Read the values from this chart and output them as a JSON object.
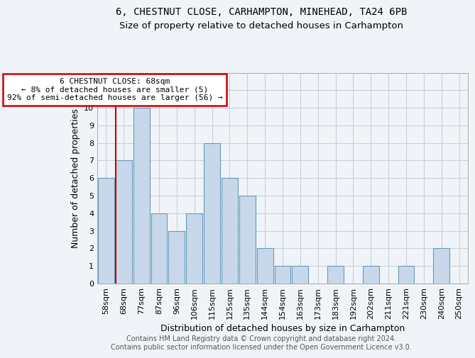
{
  "title_line1": "6, CHESTNUT CLOSE, CARHAMPTON, MINEHEAD, TA24 6PB",
  "title_line2": "Size of property relative to detached houses in Carhampton",
  "xlabel": "Distribution of detached houses by size in Carhampton",
  "ylabel": "Number of detached properties",
  "footer_line1": "Contains HM Land Registry data © Crown copyright and database right 2024.",
  "footer_line2": "Contains public sector information licensed under the Open Government Licence v3.0.",
  "categories": [
    "58sqm",
    "68sqm",
    "77sqm",
    "87sqm",
    "96sqm",
    "106sqm",
    "115sqm",
    "125sqm",
    "135sqm",
    "144sqm",
    "154sqm",
    "163sqm",
    "173sqm",
    "183sqm",
    "192sqm",
    "202sqm",
    "211sqm",
    "221sqm",
    "230sqm",
    "240sqm",
    "250sqm"
  ],
  "values": [
    6,
    7,
    10,
    4,
    3,
    4,
    8,
    6,
    5,
    2,
    1,
    1,
    0,
    1,
    0,
    1,
    0,
    1,
    0,
    2,
    0
  ],
  "bar_color": "#c8d8ea",
  "bar_edge_color": "#6699bb",
  "highlight_index": 1,
  "highlight_line_color": "#cc0000",
  "annotation_line1": "6 CHESTNUT CLOSE: 68sqm",
  "annotation_line2": "← 8% of detached houses are smaller (5)",
  "annotation_line3": "92% of semi-detached houses are larger (56) →",
  "annotation_box_edgecolor": "#cc0000",
  "ylim_max": 12,
  "grid_color": "#c8d0d8",
  "background_color": "#f0f4f8",
  "title_fontsize": 10,
  "subtitle_fontsize": 9.5,
  "axis_label_fontsize": 9,
  "tick_fontsize": 8,
  "annot_fontsize": 8,
  "footer_fontsize": 7
}
